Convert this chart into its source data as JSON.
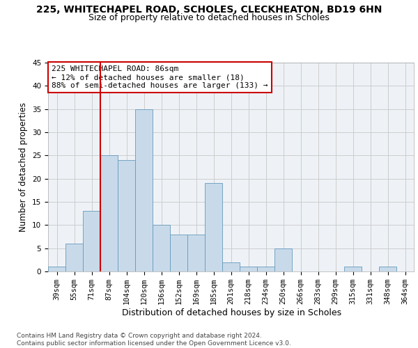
{
  "title_line1": "225, WHITECHAPEL ROAD, SCHOLES, CLECKHEATON, BD19 6HN",
  "title_line2": "Size of property relative to detached houses in Scholes",
  "xlabel": "Distribution of detached houses by size in Scholes",
  "ylabel": "Number of detached properties",
  "bar_values": [
    1,
    6,
    13,
    25,
    24,
    35,
    10,
    8,
    8,
    19,
    2,
    1,
    1,
    5,
    0,
    0,
    0,
    1,
    0,
    1,
    0
  ],
  "bin_labels": [
    "39sqm",
    "55sqm",
    "71sqm",
    "87sqm",
    "104sqm",
    "120sqm",
    "136sqm",
    "152sqm",
    "169sqm",
    "185sqm",
    "201sqm",
    "218sqm",
    "234sqm",
    "250sqm",
    "266sqm",
    "283sqm",
    "299sqm",
    "315sqm",
    "331sqm",
    "348sqm",
    "364sqm"
  ],
  "bar_color": "#c8daea",
  "bar_edge_color": "#6699bb",
  "vline_color": "#cc0000",
  "annotation_text": "225 WHITECHAPEL ROAD: 86sqm\n← 12% of detached houses are smaller (18)\n88% of semi-detached houses are larger (133) →",
  "annotation_box_color": "#ffffff",
  "annotation_box_edge": "#cc0000",
  "ylim": [
    0,
    45
  ],
  "yticks": [
    0,
    5,
    10,
    15,
    20,
    25,
    30,
    35,
    40,
    45
  ],
  "grid_color": "#cccccc",
  "background_color": "#eef2f7",
  "footer_text": "Contains HM Land Registry data © Crown copyright and database right 2024.\nContains public sector information licensed under the Open Government Licence v3.0.",
  "title_fontsize": 10,
  "subtitle_fontsize": 9,
  "axis_label_fontsize": 8.5,
  "tick_fontsize": 7.5,
  "annotation_fontsize": 8,
  "footer_fontsize": 6.5
}
